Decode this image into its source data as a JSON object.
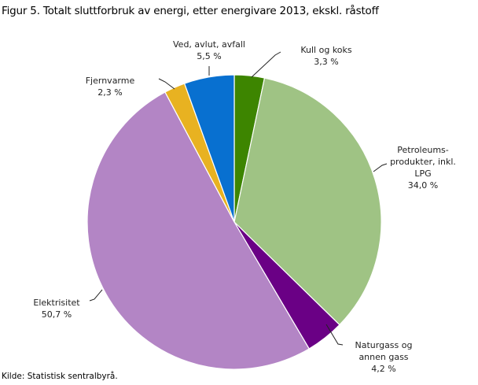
{
  "chart_data": {
    "type": "pie",
    "title": "Figur 5. Totalt sluttforbruk av energi, etter energivare 2013, ekskl. råstoff",
    "source": "Kilde: Statistisk sentralbyrå.",
    "start": "top",
    "direction": "clockwise",
    "slices": [
      {
        "label": [
          "Kull og koks"
        ],
        "value": 3.3,
        "value_label": "3,3  %",
        "color": "#3d8500"
      },
      {
        "label": [
          "Petroleums-",
          "produkter, inkl.",
          "LPG"
        ],
        "value": 34.0,
        "value_label": "34,0  %",
        "color": "#9fc384"
      },
      {
        "label": [
          "Naturgass  og",
          "annen gass"
        ],
        "value": 4.2,
        "value_label": "4,2  %",
        "color": "#6a0085"
      },
      {
        "label": [
          "Elektrisitet"
        ],
        "value": 50.7,
        "value_label": "50,7  %",
        "color": "#b385c5"
      },
      {
        "label": [
          "Fjernvarme"
        ],
        "value": 2.3,
        "value_label": "2,3  %",
        "color": "#e8b221"
      },
      {
        "label": [
          "Ved, avlut, avfall"
        ],
        "value": 5.5,
        "value_label": "5,5  %",
        "color": "#0870d0"
      }
    ]
  }
}
